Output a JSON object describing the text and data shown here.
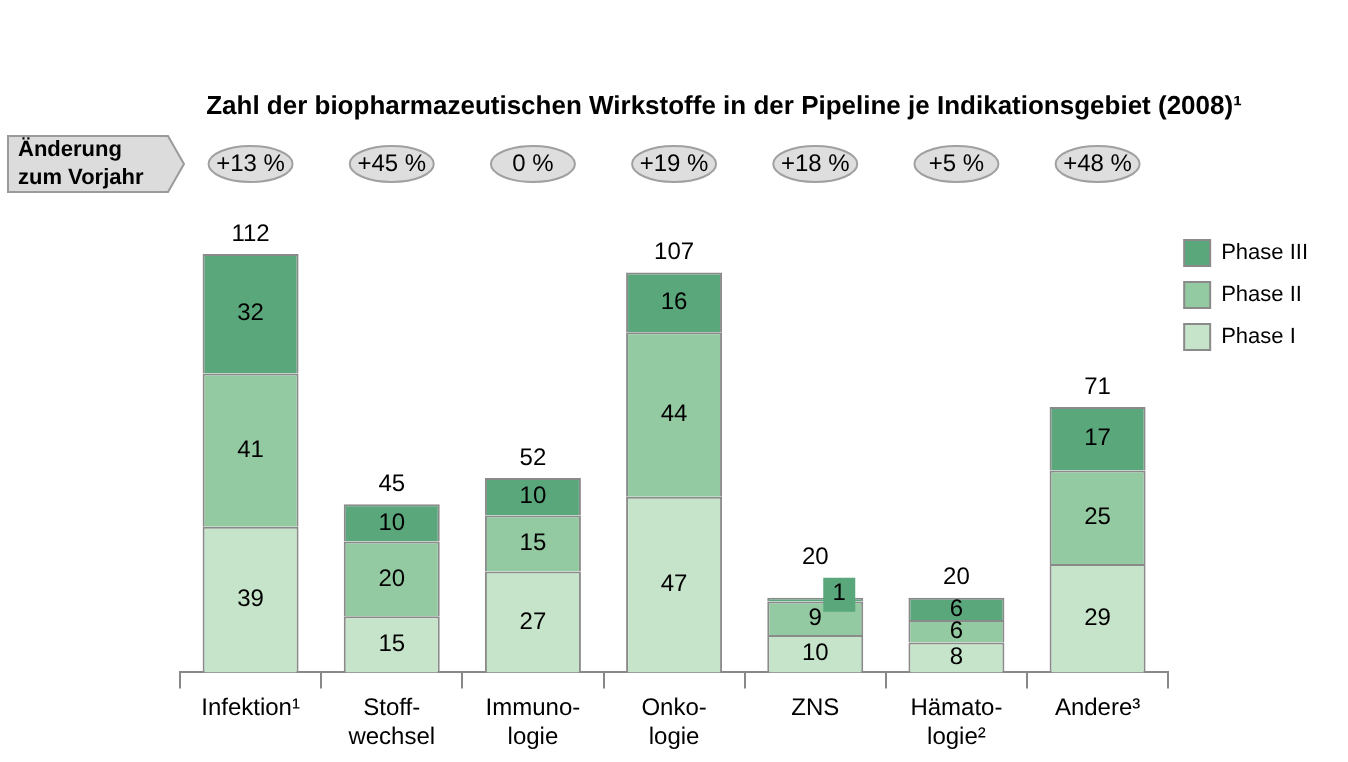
{
  "chart_data": {
    "type": "bar",
    "stacked": true,
    "title": "Zahl der biopharmazeutischen Wirkstoffe in der Pipeline je Indikationsgebiet (2008)¹",
    "categories": [
      "Infektion¹",
      "Stoff-\nwechsel",
      "Immuno-\nlogie",
      "Onko-\nlogie",
      "ZNS",
      "Hämato-\nlogie²",
      "Andere³"
    ],
    "series": [
      {
        "name": "Phase I",
        "color": "#c6e4c9",
        "values": [
          39,
          15,
          27,
          47,
          10,
          8,
          29
        ]
      },
      {
        "name": "Phase II",
        "color": "#94caa2",
        "values": [
          41,
          20,
          15,
          44,
          9,
          6,
          25
        ]
      },
      {
        "name": "Phase III",
        "color": "#5aa77c",
        "values": [
          32,
          10,
          10,
          16,
          1,
          6,
          17
        ]
      }
    ],
    "totals": [
      "112",
      "45",
      "52",
      "107",
      "20",
      "20",
      "71"
    ],
    "data_labels": true,
    "legend": "top right",
    "grid": false,
    "tick_labels": "x",
    "annotations": [
      "Änderung\nzum Vorjahr",
      "+13 %",
      "+45 %",
      "0 %",
      "+19 %",
      "+18 %",
      "+5 %",
      "+48 %"
    ]
  }
}
